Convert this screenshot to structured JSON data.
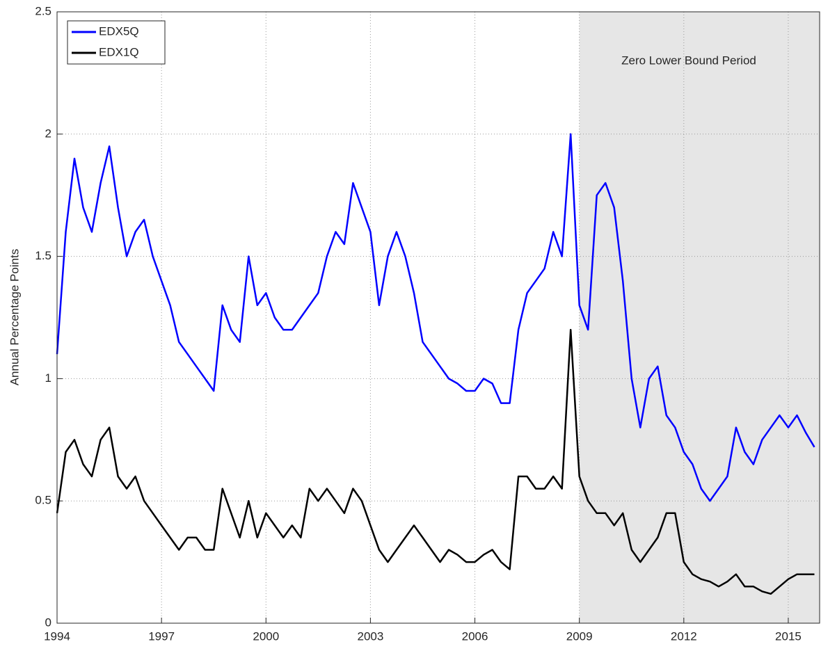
{
  "chart_data": {
    "type": "line",
    "y_label": "Annual Percentage Points",
    "annotation": "Zero Lower Bound Period",
    "shaded_region": [
      2009,
      2015.9
    ],
    "xlim": [
      1994,
      2015.9
    ],
    "xticks": [
      1994,
      1997,
      2000,
      2003,
      2006,
      2009,
      2012,
      2015
    ],
    "ylim": [
      0,
      2.5
    ],
    "yticks": [
      0,
      0.5,
      1,
      1.5,
      2,
      2.5
    ],
    "grid": true,
    "legend": "upper-left",
    "x": [
      1994,
      1994.25,
      1994.5,
      1994.75,
      1995,
      1995.25,
      1995.5,
      1995.75,
      1996,
      1996.25,
      1996.5,
      1996.75,
      1997,
      1997.25,
      1997.5,
      1997.75,
      1998,
      1998.25,
      1998.5,
      1998.75,
      1999,
      1999.25,
      1999.5,
      1999.75,
      2000,
      2000.25,
      2000.5,
      2000.75,
      2001,
      2001.25,
      2001.5,
      2001.75,
      2002,
      2002.25,
      2002.5,
      2002.75,
      2003,
      2003.25,
      2003.5,
      2003.75,
      2004,
      2004.25,
      2004.5,
      2004.75,
      2005,
      2005.25,
      2005.5,
      2005.75,
      2006,
      2006.25,
      2006.5,
      2006.75,
      2007,
      2007.25,
      2007.5,
      2007.75,
      2008,
      2008.25,
      2008.5,
      2008.75,
      2009,
      2009.25,
      2009.5,
      2009.75,
      2010,
      2010.25,
      2010.5,
      2010.75,
      2011,
      2011.25,
      2011.5,
      2011.75,
      2012,
      2012.25,
      2012.5,
      2012.75,
      2013,
      2013.25,
      2013.5,
      2013.75,
      2014,
      2014.25,
      2014.5,
      2014.75,
      2015,
      2015.25,
      2015.5,
      2015.75
    ],
    "series": [
      {
        "name": "EDX5Q",
        "color": "#0000ff",
        "values": [
          1.1,
          1.6,
          1.9,
          1.7,
          1.6,
          1.8,
          1.95,
          1.7,
          1.5,
          1.6,
          1.65,
          1.5,
          1.4,
          1.3,
          1.15,
          1.1,
          1.05,
          1.0,
          0.95,
          1.3,
          1.2,
          1.15,
          1.5,
          1.3,
          1.35,
          1.25,
          1.2,
          1.2,
          1.25,
          1.3,
          1.35,
          1.5,
          1.6,
          1.55,
          1.8,
          1.7,
          1.6,
          1.3,
          1.5,
          1.6,
          1.5,
          1.35,
          1.15,
          1.1,
          1.05,
          1.0,
          0.98,
          0.95,
          0.95,
          1.0,
          0.98,
          0.9,
          0.9,
          1.2,
          1.35,
          1.4,
          1.45,
          1.6,
          1.5,
          2.0,
          1.3,
          1.2,
          1.75,
          1.8,
          1.7,
          1.4,
          1.0,
          0.8,
          1.0,
          1.05,
          0.85,
          0.8,
          0.7,
          0.65,
          0.55,
          0.5,
          0.55,
          0.6,
          0.8,
          0.7,
          0.65,
          0.75,
          0.8,
          0.85,
          0.8,
          0.85,
          0.78,
          0.72
        ]
      },
      {
        "name": "EDX1Q",
        "color": "#000000",
        "values": [
          0.45,
          0.7,
          0.75,
          0.65,
          0.6,
          0.75,
          0.8,
          0.6,
          0.55,
          0.6,
          0.5,
          0.45,
          0.4,
          0.35,
          0.3,
          0.35,
          0.35,
          0.3,
          0.3,
          0.55,
          0.45,
          0.35,
          0.5,
          0.35,
          0.45,
          0.4,
          0.35,
          0.4,
          0.35,
          0.55,
          0.5,
          0.55,
          0.5,
          0.45,
          0.55,
          0.5,
          0.4,
          0.3,
          0.25,
          0.3,
          0.35,
          0.4,
          0.35,
          0.3,
          0.25,
          0.3,
          0.28,
          0.25,
          0.25,
          0.28,
          0.3,
          0.25,
          0.22,
          0.6,
          0.6,
          0.55,
          0.55,
          0.6,
          0.55,
          1.2,
          0.6,
          0.5,
          0.45,
          0.45,
          0.4,
          0.45,
          0.3,
          0.25,
          0.3,
          0.35,
          0.45,
          0.45,
          0.25,
          0.2,
          0.18,
          0.17,
          0.15,
          0.17,
          0.2,
          0.15,
          0.15,
          0.13,
          0.12,
          0.15,
          0.18,
          0.2,
          0.2,
          0.2
        ]
      }
    ]
  }
}
